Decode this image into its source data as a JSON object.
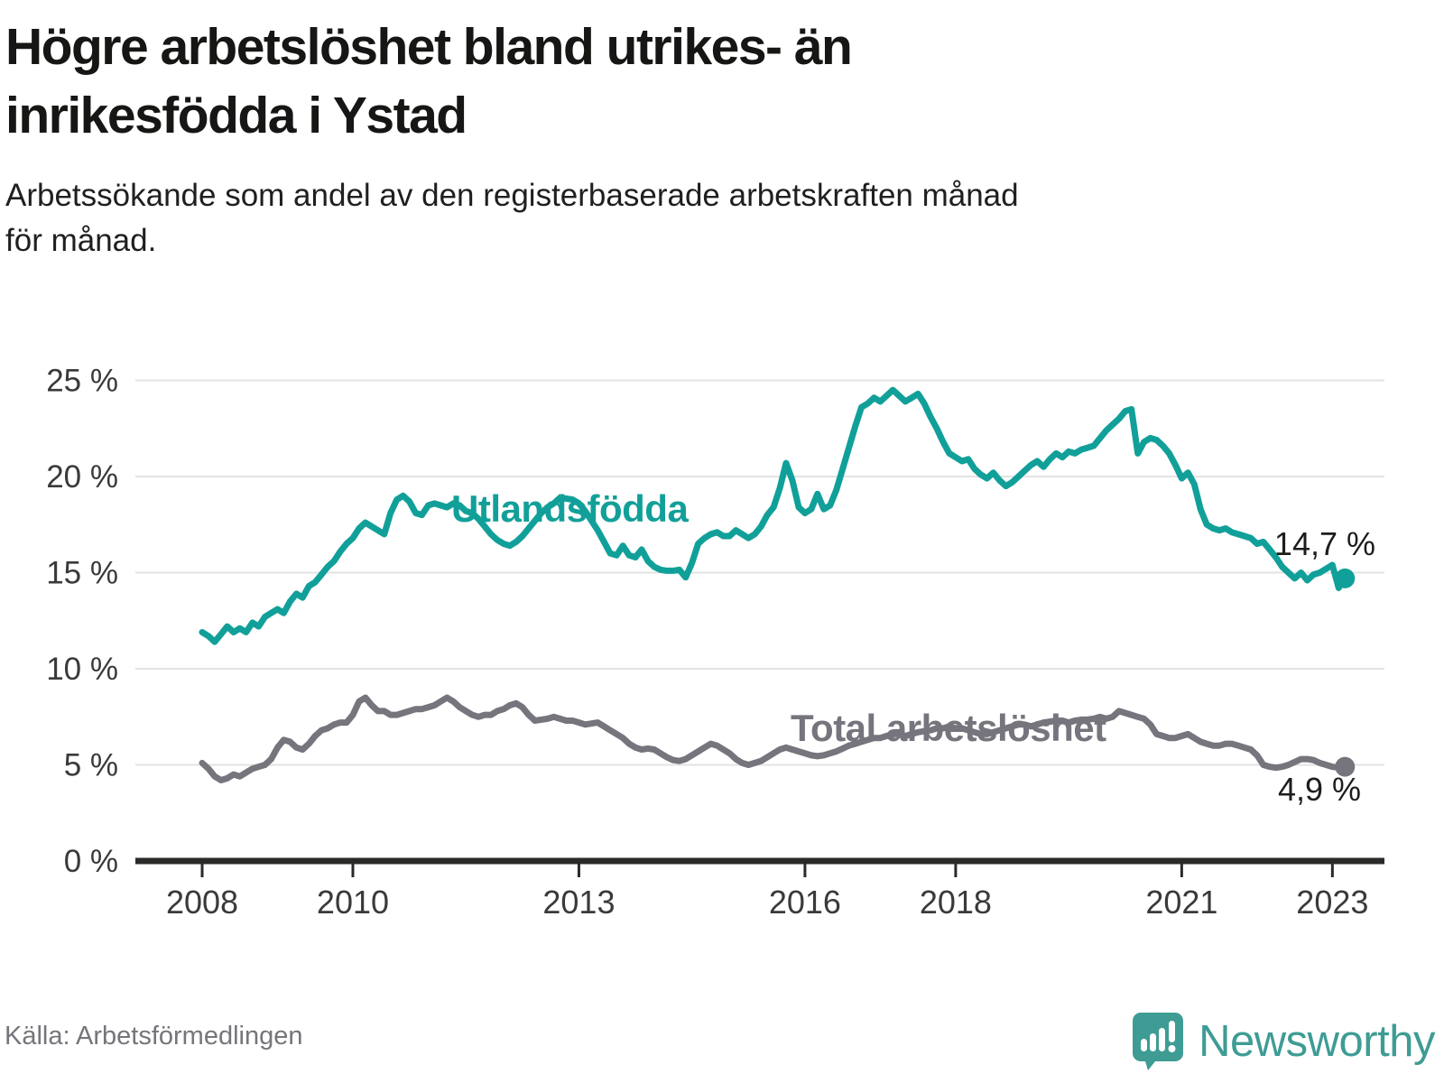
{
  "header": {
    "title_lines": [
      "Högre arbetslöshet bland utrikes- än",
      "inrikesfödda i Ystad"
    ],
    "subtitle_lines": [
      "Arbetssökande som andel av den registerbaserade arbetskraften månad",
      "för månad."
    ]
  },
  "footer": {
    "source": "Källa: Arbetsförmedlingen",
    "brand": "Newsworthy",
    "brand_color": "#3e9c94"
  },
  "chart_data": {
    "type": "line",
    "unit": "%",
    "frequency": "monthly",
    "start": {
      "year": 2008,
      "month": 1
    },
    "end": {
      "year": 2023,
      "month": 3
    },
    "ylim": [
      0,
      26
    ],
    "grid": "horizontal",
    "legend_position": "inline-labels",
    "y_ticks": [
      {
        "value": 25,
        "label": "25 %"
      },
      {
        "value": 20,
        "label": "20 %"
      },
      {
        "value": 15,
        "label": "15 %"
      },
      {
        "value": 10,
        "label": "10 %"
      },
      {
        "value": 5,
        "label": "5 %"
      },
      {
        "value": 0,
        "label": "0 %"
      }
    ],
    "x_ticks": [
      {
        "year": 2008,
        "label": "2008"
      },
      {
        "year": 2010,
        "label": "2010"
      },
      {
        "year": 2013,
        "label": "2013"
      },
      {
        "year": 2016,
        "label": "2016"
      },
      {
        "year": 2018,
        "label": "2018"
      },
      {
        "year": 2021,
        "label": "2021"
      },
      {
        "year": 2023,
        "label": "2023"
      }
    ],
    "series": [
      {
        "name": "Utlandsfödda",
        "color": "#11a099",
        "end_label": "14,7 %",
        "end_value": 14.7,
        "values": [
          11.9,
          11.7,
          11.4,
          11.8,
          12.2,
          11.9,
          12.1,
          11.9,
          12.4,
          12.2,
          12.7,
          12.9,
          13.1,
          12.9,
          13.5,
          13.9,
          13.7,
          14.3,
          14.5,
          14.9,
          15.3,
          15.6,
          16.1,
          16.5,
          16.8,
          17.3,
          17.6,
          17.4,
          17.2,
          17.0,
          18.1,
          18.8,
          19.0,
          18.7,
          18.1,
          18.0,
          18.5,
          18.6,
          18.5,
          18.4,
          18.6,
          18.5,
          18.2,
          18.1,
          17.8,
          17.4,
          17.0,
          16.7,
          16.5,
          16.4,
          16.6,
          16.9,
          17.3,
          17.7,
          18.1,
          18.4,
          18.6,
          18.9,
          18.85,
          18.8,
          18.6,
          18.2,
          17.7,
          17.2,
          16.6,
          16.0,
          15.9,
          16.4,
          15.9,
          15.8,
          16.2,
          15.6,
          15.3,
          15.15,
          15.1,
          15.1,
          15.15,
          14.75,
          15.5,
          16.5,
          16.8,
          17.0,
          17.1,
          16.9,
          16.9,
          17.2,
          17.0,
          16.8,
          17.0,
          17.4,
          18.0,
          18.4,
          19.4,
          20.7,
          19.8,
          18.4,
          18.1,
          18.3,
          19.1,
          18.3,
          18.5,
          19.3,
          20.4,
          21.5,
          22.6,
          23.6,
          23.8,
          24.1,
          23.9,
          24.2,
          24.5,
          24.2,
          23.9,
          24.1,
          24.3,
          23.8,
          23.1,
          22.5,
          21.8,
          21.2,
          21.0,
          20.8,
          20.9,
          20.4,
          20.1,
          19.9,
          20.2,
          19.8,
          19.5,
          19.7,
          20.0,
          20.3,
          20.6,
          20.8,
          20.5,
          20.9,
          21.2,
          21.0,
          21.3,
          21.2,
          21.4,
          21.5,
          21.6,
          22.0,
          22.4,
          22.7,
          23.0,
          23.4,
          23.5,
          21.2,
          21.8,
          22.0,
          21.9,
          21.6,
          21.2,
          20.6,
          19.9,
          20.2,
          19.6,
          18.3,
          17.5,
          17.3,
          17.2,
          17.3,
          17.1,
          17.0,
          16.9,
          16.8,
          16.5,
          16.6,
          16.2,
          15.8,
          15.3,
          15.0,
          14.7,
          15.0,
          14.6,
          14.9,
          15.0,
          15.2,
          15.4,
          14.2,
          14.7
        ]
      },
      {
        "name": "Total arbetslöshet",
        "color": "#76747c",
        "end_label": "4,9 %",
        "end_value": 4.9,
        "values": [
          5.1,
          4.8,
          4.4,
          4.2,
          4.3,
          4.5,
          4.4,
          4.6,
          4.8,
          4.9,
          5.0,
          5.3,
          5.9,
          6.3,
          6.2,
          5.9,
          5.8,
          6.1,
          6.5,
          6.8,
          6.9,
          7.1,
          7.2,
          7.2,
          7.6,
          8.3,
          8.5,
          8.1,
          7.8,
          7.8,
          7.6,
          7.6,
          7.7,
          7.8,
          7.9,
          7.9,
          8.0,
          8.1,
          8.3,
          8.5,
          8.3,
          8.0,
          7.8,
          7.6,
          7.5,
          7.6,
          7.6,
          7.8,
          7.9,
          8.1,
          8.2,
          8.0,
          7.6,
          7.3,
          7.35,
          7.4,
          7.5,
          7.4,
          7.3,
          7.3,
          7.2,
          7.1,
          7.15,
          7.2,
          7.0,
          6.8,
          6.6,
          6.4,
          6.1,
          5.9,
          5.8,
          5.85,
          5.8,
          5.6,
          5.4,
          5.25,
          5.2,
          5.3,
          5.5,
          5.7,
          5.9,
          6.1,
          6.0,
          5.8,
          5.6,
          5.3,
          5.1,
          5.0,
          5.1,
          5.2,
          5.4,
          5.6,
          5.8,
          5.9,
          5.8,
          5.7,
          5.6,
          5.5,
          5.45,
          5.5,
          5.6,
          5.7,
          5.85,
          6.0,
          6.1,
          6.2,
          6.3,
          6.4,
          6.4,
          6.5,
          6.6,
          6.6,
          6.5,
          6.6,
          6.7,
          6.75,
          6.8,
          6.9,
          6.9,
          7.0,
          6.9,
          6.9,
          6.8,
          6.7,
          6.6,
          6.6,
          6.7,
          6.8,
          6.9,
          7.0,
          7.1,
          7.1,
          7.0,
          7.1,
          7.2,
          7.25,
          7.3,
          7.3,
          7.2,
          7.3,
          7.35,
          7.35,
          7.4,
          7.5,
          7.4,
          7.5,
          7.8,
          7.7,
          7.6,
          7.5,
          7.4,
          7.1,
          6.6,
          6.5,
          6.4,
          6.4,
          6.5,
          6.6,
          6.4,
          6.2,
          6.1,
          6.0,
          6.0,
          6.1,
          6.1,
          6.0,
          5.9,
          5.8,
          5.5,
          5.0,
          4.9,
          4.85,
          4.9,
          5.0,
          5.15,
          5.3,
          5.3,
          5.25,
          5.1,
          5.0,
          4.9,
          4.85,
          4.9
        ]
      }
    ]
  }
}
